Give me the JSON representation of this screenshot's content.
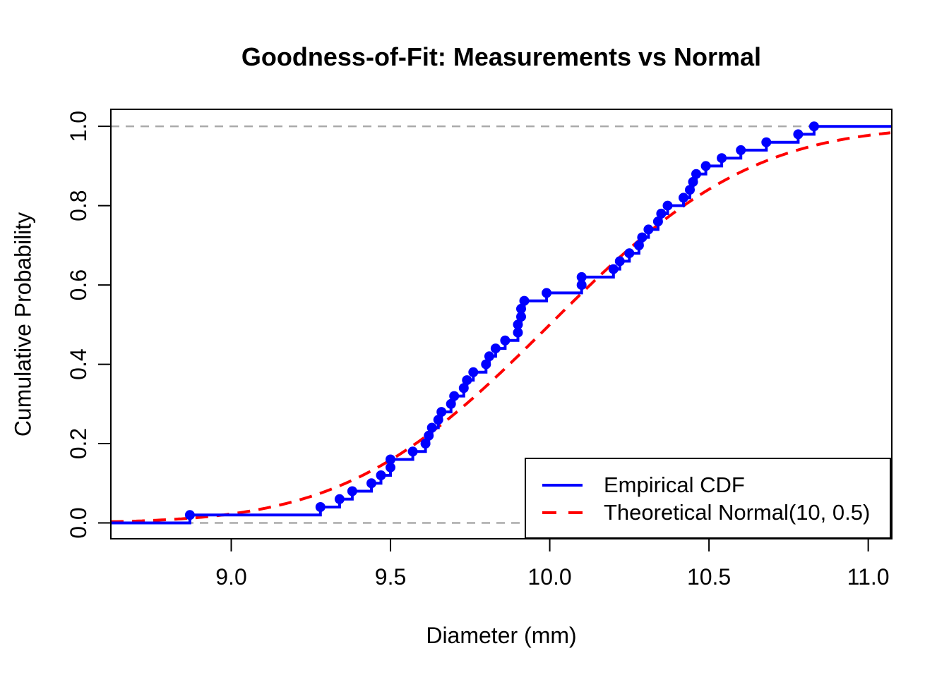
{
  "chart_data": {
    "type": "line",
    "subtype": "ecdf-vs-theoretical-cdf",
    "title": "Goodness-of-Fit: Measurements vs Normal",
    "xlabel": "Diameter (mm)",
    "ylabel": "Cumulative Probability",
    "xlim": [
      8.622,
      11.074
    ],
    "ylim": [
      -0.04,
      1.043
    ],
    "grid": "off",
    "x_ticks": {
      "values": [
        9.0,
        9.5,
        10.0,
        10.5,
        11.0
      ],
      "labels": [
        "9.0",
        "9.5",
        "10.0",
        "10.5",
        "11.0"
      ]
    },
    "y_ticks": {
      "values": [
        0.0,
        0.2,
        0.4,
        0.6,
        0.8,
        1.0
      ],
      "labels": [
        "0.0",
        "0.2",
        "0.4",
        "0.6",
        "0.8",
        "1.0"
      ]
    },
    "series": [
      {
        "name": "Empirical CDF",
        "kind": "ecdf-step-with-points",
        "color": "#0000FF",
        "line_width": 4,
        "point_radius": 7,
        "n": 50,
        "sorted_values": [
          8.87,
          9.28,
          9.34,
          9.38,
          9.44,
          9.47,
          9.5,
          9.5,
          9.57,
          9.61,
          9.62,
          9.63,
          9.65,
          9.66,
          9.69,
          9.7,
          9.73,
          9.74,
          9.76,
          9.8,
          9.81,
          9.83,
          9.86,
          9.9,
          9.9,
          9.91,
          9.91,
          9.92,
          9.99,
          10.1,
          10.1,
          10.2,
          10.22,
          10.25,
          10.28,
          10.29,
          10.31,
          10.34,
          10.35,
          10.37,
          10.42,
          10.44,
          10.45,
          10.46,
          10.49,
          10.54,
          10.6,
          10.68,
          10.78,
          10.83
        ]
      },
      {
        "name": "Theoretical Normal(10, 0.5)",
        "kind": "normal-cdf",
        "color": "#FF0000",
        "line_width": 4,
        "linestyle": "dashed",
        "mean": 10,
        "sd": 0.5
      }
    ],
    "reference_lines": {
      "y_values": [
        0.0,
        1.0
      ],
      "color": "#AAAAAA",
      "style": "dashed"
    },
    "legend": {
      "position": "bottomright",
      "items": [
        {
          "label": "Empirical CDF",
          "color": "#0000FF",
          "style": "solid"
        },
        {
          "label": "Theoretical Normal(10, 0.5)",
          "color": "#FF0000",
          "style": "dashed"
        }
      ]
    }
  }
}
